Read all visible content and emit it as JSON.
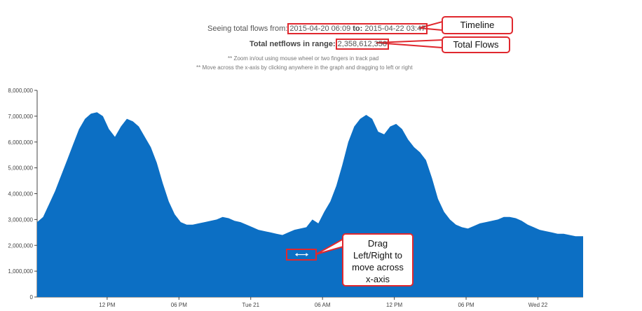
{
  "header": {
    "prefix": "Seeing total flows from:",
    "from": "2015-04-20 06:09",
    "to_label": "to:",
    "to": "2015-04-22 03:47",
    "total_label": "Total netflows in range:",
    "total_value": "2,358,612,350",
    "hint1": "** Zoom in/out using mouse wheel or two fingers in track pad",
    "hint2": "** Move across the x-axis by clicking anywhere in the graph and dragging to left or right"
  },
  "callouts": {
    "timeline": "Timeline",
    "total_flows": "Total Flows",
    "drag_line1": "Drag",
    "drag_line2": "Left/Right to",
    "drag_line3": "move across",
    "drag_line4": "x-axis"
  },
  "drag_icon": "horizontal-resize-icon",
  "colors": {
    "area": "#0c6fc4",
    "annotation": "#e0282e"
  },
  "chart_data": {
    "type": "area",
    "x_tick_labels": [
      "12 PM",
      "06 PM",
      "Tue 21",
      "06 AM",
      "12 PM",
      "06 PM",
      "Wed 22"
    ],
    "x_tick_hours": [
      5.85,
      11.85,
      17.85,
      23.85,
      29.85,
      35.85,
      41.85
    ],
    "x_range_hours": [
      0,
      45.63
    ],
    "y_tick_labels": [
      "0",
      "1,000,000",
      "2,000,000",
      "3,000,000",
      "4,000,000",
      "5,000,000",
      "6,000,000",
      "7,000,000",
      "8,000,000"
    ],
    "ylim": [
      0,
      8000000
    ],
    "grid": false,
    "series": [
      {
        "x_hours": [
          0,
          0.5,
          1,
          1.5,
          2,
          2.5,
          3,
          3.5,
          4,
          4.5,
          5,
          5.5,
          6,
          6.5,
          7,
          7.5,
          8,
          8.5,
          9,
          9.5,
          10,
          10.5,
          11,
          11.5,
          12,
          12.5,
          13,
          13.5,
          14,
          14.5,
          15,
          15.5,
          16,
          16.5,
          17,
          17.5,
          18,
          18.5,
          19,
          19.5,
          20,
          20.5,
          21,
          21.5,
          22,
          22.5,
          23,
          23.5,
          24,
          24.5,
          25,
          25.5,
          26,
          26.5,
          27,
          27.5,
          28,
          28.5,
          29,
          29.5,
          30,
          30.5,
          31,
          31.5,
          32,
          32.5,
          33,
          33.5,
          34,
          34.5,
          35,
          35.5,
          36,
          36.5,
          37,
          37.5,
          38,
          38.5,
          39,
          39.5,
          40,
          40.5,
          41,
          41.5,
          42,
          42.5,
          43,
          43.5,
          44,
          44.5,
          45,
          45.63
        ],
        "values": [
          2900000,
          3100000,
          3600000,
          4100000,
          4700000,
          5300000,
          5900000,
          6500000,
          6900000,
          7100000,
          7150000,
          7000000,
          6500000,
          6200000,
          6600000,
          6900000,
          6800000,
          6600000,
          6200000,
          5800000,
          5200000,
          4400000,
          3700000,
          3200000,
          2900000,
          2800000,
          2800000,
          2850000,
          2900000,
          2950000,
          3000000,
          3100000,
          3050000,
          2950000,
          2900000,
          2800000,
          2700000,
          2600000,
          2550000,
          2500000,
          2450000,
          2400000,
          2500000,
          2600000,
          2650000,
          2700000,
          3000000,
          2850000,
          3300000,
          3700000,
          4300000,
          5100000,
          6000000,
          6600000,
          6900000,
          7050000,
          6900000,
          6400000,
          6300000,
          6600000,
          6700000,
          6500000,
          6100000,
          5800000,
          5600000,
          5300000,
          4600000,
          3800000,
          3300000,
          3000000,
          2800000,
          2700000,
          2650000,
          2750000,
          2850000,
          2900000,
          2950000,
          3000000,
          3100000,
          3100000,
          3050000,
          2950000,
          2800000,
          2700000,
          2600000,
          2550000,
          2500000,
          2450000,
          2450000,
          2400000,
          2350000,
          2350000
        ]
      }
    ]
  }
}
